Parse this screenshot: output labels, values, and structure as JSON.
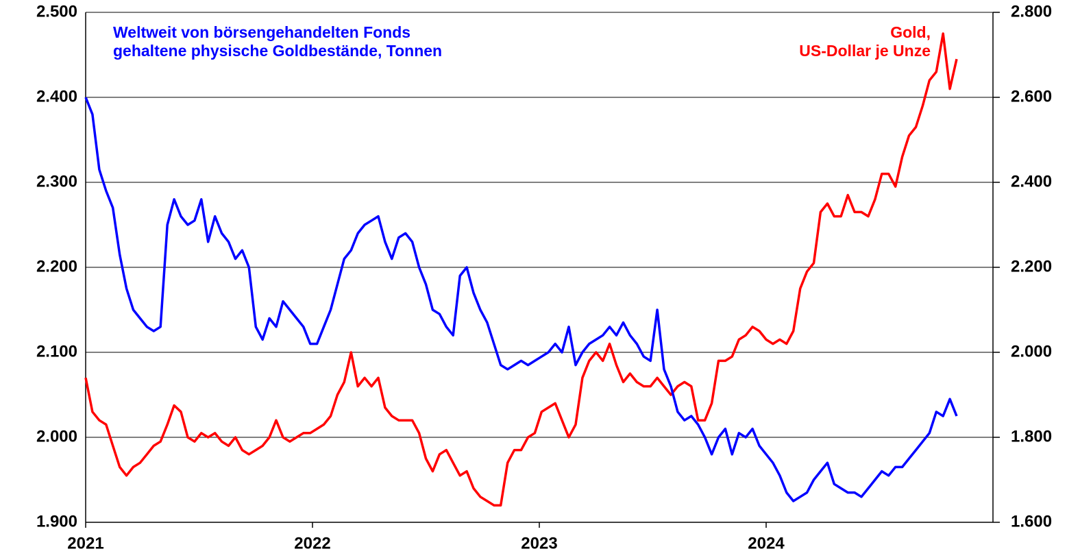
{
  "chart_data": {
    "type": "line",
    "x": [
      2021,
      2021.03,
      2021.06,
      2021.09,
      2021.12,
      2021.15,
      2021.18,
      2021.21,
      2021.24,
      2021.27,
      2021.3,
      2021.33,
      2021.36,
      2021.39,
      2021.42,
      2021.45,
      2021.48,
      2021.51,
      2021.54,
      2021.57,
      2021.6,
      2021.63,
      2021.66,
      2021.69,
      2021.72,
      2021.75,
      2021.78,
      2021.81,
      2021.84,
      2021.87,
      2021.9,
      2021.93,
      2021.96,
      2021.99,
      2022.02,
      2022.05,
      2022.08,
      2022.11,
      2022.14,
      2022.17,
      2022.2,
      2022.23,
      2022.26,
      2022.29,
      2022.32,
      2022.35,
      2022.38,
      2022.41,
      2022.44,
      2022.47,
      2022.5,
      2022.53,
      2022.56,
      2022.59,
      2022.62,
      2022.65,
      2022.68,
      2022.71,
      2022.74,
      2022.77,
      2022.8,
      2022.83,
      2022.86,
      2022.89,
      2022.92,
      2022.95,
      2022.98,
      2023.01,
      2023.04,
      2023.07,
      2023.1,
      2023.13,
      2023.16,
      2023.19,
      2023.22,
      2023.25,
      2023.28,
      2023.31,
      2023.34,
      2023.37,
      2023.4,
      2023.43,
      2023.46,
      2023.49,
      2023.52,
      2023.55,
      2023.58,
      2023.61,
      2023.64,
      2023.67,
      2023.7,
      2023.73,
      2023.76,
      2023.79,
      2023.82,
      2023.85,
      2023.88,
      2023.91,
      2023.94,
      2023.97,
      2024,
      2024.03,
      2024.06,
      2024.09,
      2024.12,
      2024.15,
      2024.18,
      2024.21,
      2024.24,
      2024.27,
      2024.3,
      2024.33,
      2024.36,
      2024.39,
      2024.42,
      2024.45,
      2024.48,
      2024.51,
      2024.54,
      2024.57,
      2024.6,
      2024.63,
      2024.66,
      2024.69,
      2024.72,
      2024.75,
      2024.78,
      2024.81,
      2024.84
    ],
    "series": [
      {
        "name": "Weltweit von börsengehandelten Fonds\ngehaltene physische Goldbestände, Tonnen",
        "color": "#0000ff",
        "axis": "y",
        "values": [
          2400,
          2380,
          2315,
          2290,
          2270,
          2215,
          2175,
          2150,
          2140,
          2130,
          2125,
          2130,
          2250,
          2280,
          2260,
          2250,
          2255,
          2280,
          2230,
          2260,
          2240,
          2230,
          2210,
          2220,
          2200,
          2130,
          2115,
          2140,
          2130,
          2160,
          2150,
          2140,
          2130,
          2110,
          2110,
          2130,
          2150,
          2180,
          2210,
          2220,
          2240,
          2250,
          2255,
          2260,
          2230,
          2210,
          2235,
          2240,
          2230,
          2200,
          2180,
          2150,
          2145,
          2130,
          2120,
          2190,
          2200,
          2170,
          2150,
          2135,
          2110,
          2085,
          2080,
          2085,
          2090,
          2085,
          2090,
          2095,
          2100,
          2110,
          2100,
          2130,
          2085,
          2100,
          2110,
          2115,
          2120,
          2130,
          2120,
          2135,
          2120,
          2110,
          2095,
          2090,
          2150,
          2080,
          2060,
          2030,
          2020,
          2025,
          2015,
          2000,
          1980,
          2000,
          2010,
          1980,
          2005,
          2000,
          2010,
          1990,
          1980,
          1970,
          1955,
          1935,
          1925,
          1930,
          1935,
          1950,
          1960,
          1970,
          1945,
          1940,
          1935,
          1935,
          1930,
          1940,
          1950,
          1960,
          1955,
          1965,
          1965,
          1975,
          1985,
          1995,
          2005,
          2030,
          2025,
          2045,
          2025
        ]
      },
      {
        "name": "Gold,\nUS-Dollar je Unze",
        "color": "#ff0000",
        "axis": "y2",
        "values": [
          1940,
          1860,
          1840,
          1830,
          1780,
          1730,
          1710,
          1730,
          1740,
          1760,
          1780,
          1790,
          1830,
          1875,
          1860,
          1800,
          1790,
          1810,
          1800,
          1810,
          1790,
          1780,
          1800,
          1770,
          1760,
          1770,
          1780,
          1800,
          1840,
          1800,
          1790,
          1800,
          1810,
          1810,
          1820,
          1830,
          1850,
          1900,
          1930,
          2000,
          1920,
          1940,
          1920,
          1940,
          1870,
          1850,
          1840,
          1840,
          1840,
          1810,
          1750,
          1720,
          1760,
          1770,
          1740,
          1710,
          1720,
          1680,
          1660,
          1650,
          1640,
          1640,
          1740,
          1770,
          1770,
          1800,
          1810,
          1860,
          1870,
          1880,
          1840,
          1800,
          1830,
          1940,
          1980,
          2000,
          1980,
          2020,
          1970,
          1930,
          1950,
          1930,
          1920,
          1920,
          1940,
          1920,
          1900,
          1920,
          1930,
          1920,
          1840,
          1840,
          1880,
          1980,
          1980,
          1990,
          2030,
          2040,
          2060,
          2050,
          2030,
          2020,
          2030,
          2020,
          2050,
          2150,
          2190,
          2210,
          2330,
          2350,
          2320,
          2320,
          2370,
          2330,
          2330,
          2320,
          2360,
          2420,
          2420,
          2390,
          2460,
          2510,
          2530,
          2580,
          2640,
          2660,
          2750,
          2620,
          2690
        ]
      }
    ],
    "xlim": [
      2021,
      2025
    ],
    "xticks": [
      2021,
      2022,
      2023,
      2024
    ],
    "ylim": [
      1900,
      2500
    ],
    "yticks": [
      {
        "value": 1900,
        "label": "1.900"
      },
      {
        "value": 2000,
        "label": "2.000"
      },
      {
        "value": 2100,
        "label": "2.100"
      },
      {
        "value": 2200,
        "label": "2.200"
      },
      {
        "value": 2300,
        "label": "2.300"
      },
      {
        "value": 2400,
        "label": "2.400"
      },
      {
        "value": 2500,
        "label": "2.500"
      }
    ],
    "y2lim": [
      1600,
      2800
    ],
    "y2ticks": [
      {
        "value": 1600,
        "label": "1.600"
      },
      {
        "value": 1800,
        "label": "1.800"
      },
      {
        "value": 2000,
        "label": "2.000"
      },
      {
        "value": 2200,
        "label": "2.200"
      },
      {
        "value": 2400,
        "label": "2.400"
      },
      {
        "value": 2600,
        "label": "2.600"
      },
      {
        "value": 2800,
        "label": "2.800"
      }
    ],
    "grid": true
  }
}
